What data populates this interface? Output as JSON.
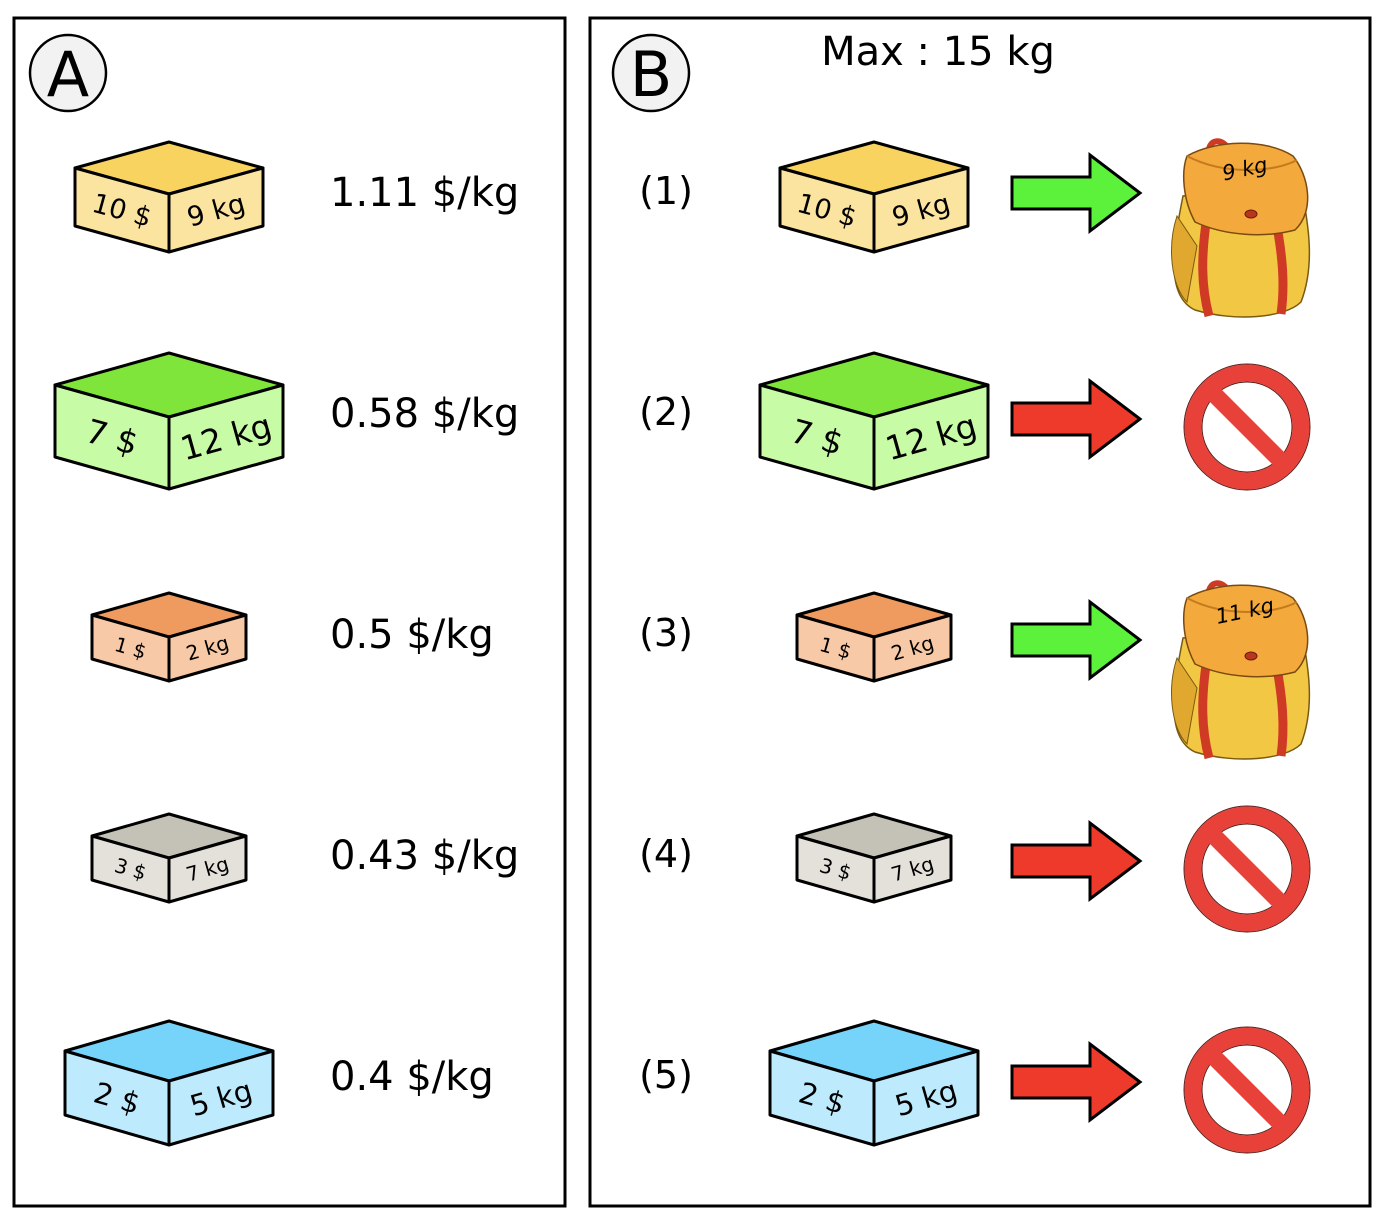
{
  "panel_a": {
    "letter": "A",
    "items": [
      {
        "value": "10 $",
        "weight": "9 kg",
        "ratio": "1.11 $/kg",
        "top": "#f9d35f",
        "side": "#fbe3a0"
      },
      {
        "value": "7 $",
        "weight": "12 kg",
        "ratio": "0.58 $/kg",
        "top": "#7fe53a",
        "side": "#c8fba6"
      },
      {
        "value": "1 $",
        "weight": "2 kg",
        "ratio": "0.5 $/kg",
        "top": "#ef9a5f",
        "side": "#f8c9a6"
      },
      {
        "value": "3 $",
        "weight": "7 kg",
        "ratio": "0.43 $/kg",
        "top": "#c4c2b6",
        "side": "#e3e1da"
      },
      {
        "value": "2 $",
        "weight": "5 kg",
        "ratio": "0.4 $/kg",
        "top": "#76d4fa",
        "side": "#bdebfd"
      }
    ]
  },
  "panel_b": {
    "letter": "B",
    "capacity": "Max : 15 kg",
    "steps": [
      {
        "step": "(1)",
        "value": "10 $",
        "weight": "9 kg",
        "result": "accepted",
        "bag_label": "9 kg",
        "top": "#f9d35f",
        "side": "#fbe3a0"
      },
      {
        "step": "(2)",
        "value": "7 $",
        "weight": "12 kg",
        "result": "rejected",
        "top": "#7fe53a",
        "side": "#c8fba6"
      },
      {
        "step": "(3)",
        "value": "1 $",
        "weight": "2 kg",
        "result": "accepted",
        "bag_label": "11 kg",
        "top": "#ef9a5f",
        "side": "#f8c9a6"
      },
      {
        "step": "(4)",
        "value": "3 $",
        "weight": "7 kg",
        "result": "rejected",
        "top": "#c4c2b6",
        "side": "#e3e1da"
      },
      {
        "step": "(5)",
        "value": "2 $",
        "weight": "5 kg",
        "result": "rejected",
        "top": "#76d4fa",
        "side": "#bdebfd"
      }
    ]
  },
  "colors": {
    "accept_arrow": "#5cf23c",
    "reject_arrow": "#ee3a2a",
    "prohibition_sign": "#e8413a",
    "backpack_body": "#f2c744",
    "backpack_flap": "#f3a93b",
    "backpack_strap": "#cf3a25"
  },
  "icons": {
    "accepted": "backpack-icon",
    "rejected": "prohibition-sign-icon"
  }
}
